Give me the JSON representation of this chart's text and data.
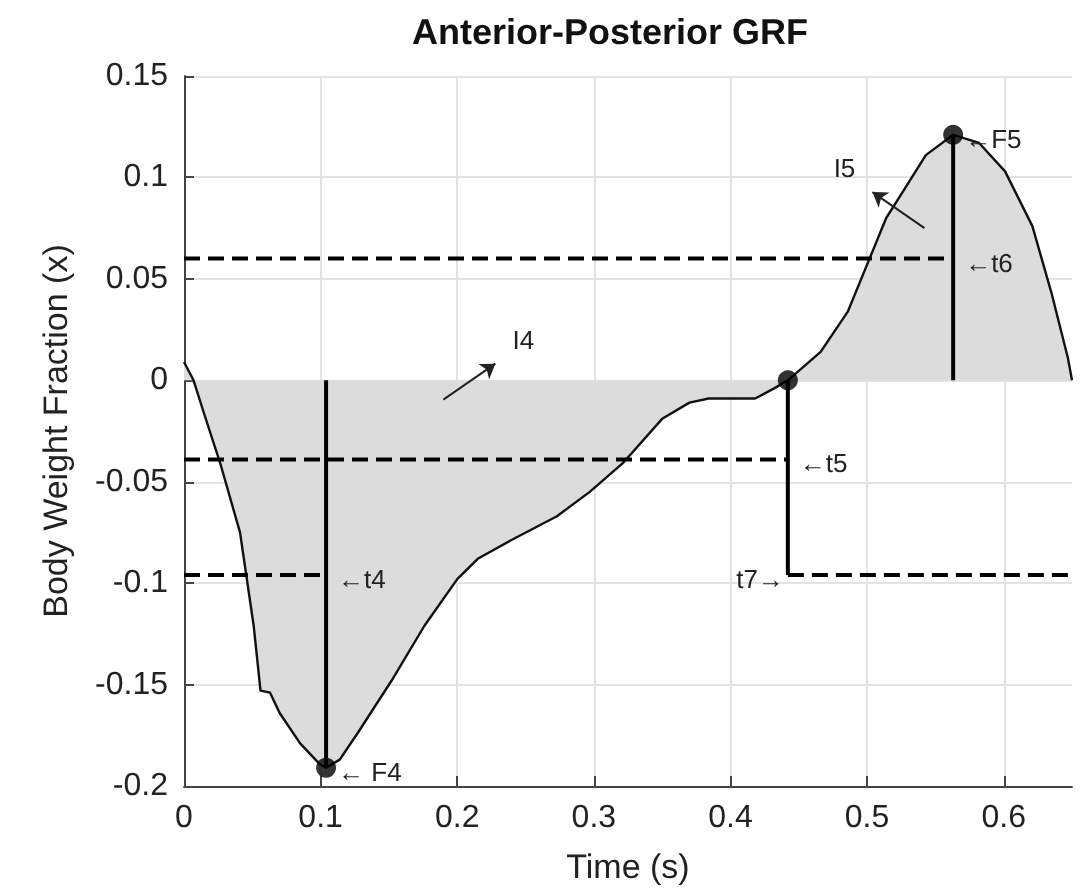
{
  "chart_data": {
    "type": "area",
    "title": "Anterior-Posterior GRF",
    "xlabel": "Time (s)",
    "ylabel": "Body Weight Fraction (x)",
    "xlim": [
      0,
      0.65
    ],
    "xticks": [
      0,
      0.1,
      0.2,
      0.3,
      0.4,
      0.5,
      0.6
    ],
    "ylim": [
      -0.2,
      0.15
    ],
    "yticks": [
      -0.2,
      -0.15,
      -0.1,
      -0.05,
      0,
      0.05,
      0.1,
      0.15
    ],
    "grid": true,
    "series": [
      {
        "type": "area",
        "color": "#dcdcdc",
        "x": [
          0,
          0.007,
          0.0145,
          0.027,
          0.041,
          0.051,
          0.056,
          0.063,
          0.07,
          0.085,
          0.099,
          0.104,
          0.114,
          0.128,
          0.152,
          0.176,
          0.2,
          0.215,
          0.239,
          0.273,
          0.297,
          0.321,
          0.35,
          0.37,
          0.384,
          0.418,
          0.432,
          0.442,
          0.466,
          0.486,
          0.5,
          0.514,
          0.529,
          0.543,
          0.563,
          0.582,
          0.601,
          0.621,
          0.635,
          0.647,
          0.65
        ],
        "values": [
          0.009,
          0,
          -0.016,
          -0.042,
          -0.075,
          -0.121,
          -0.153,
          -0.154,
          -0.164,
          -0.179,
          -0.189,
          -0.191,
          -0.187,
          -0.173,
          -0.148,
          -0.121,
          -0.098,
          -0.088,
          -0.079,
          -0.067,
          -0.055,
          -0.041,
          -0.019,
          -0.011,
          -0.009,
          -0.009,
          -0.004,
          0,
          0.014,
          0.034,
          0.057,
          0.08,
          0.096,
          0.111,
          0.121,
          0.117,
          0.103,
          0.076,
          0.043,
          0.011,
          0
        ]
      },
      {
        "type": "line",
        "color": "#000000",
        "line_style": "dashed",
        "marker": "none",
        "x": [
          0,
          0.563
        ],
        "values": [
          0.06,
          0.06
        ]
      },
      {
        "type": "line",
        "color": "#000000",
        "line_style": "dashed",
        "marker": "none",
        "x": [
          0,
          0.442
        ],
        "values": [
          -0.039,
          -0.039
        ]
      },
      {
        "type": "line",
        "color": "#000000",
        "line_style": "dashed",
        "marker": "none",
        "x": [
          0,
          0.104
        ],
        "values": [
          -0.096,
          -0.096
        ]
      },
      {
        "type": "line",
        "color": "#000000",
        "line_style": "dashed",
        "marker": "none",
        "x": [
          0.442,
          0.65
        ],
        "values": [
          -0.096,
          -0.096
        ]
      },
      {
        "type": "line",
        "color": "#000000",
        "line_style": "solid",
        "marker": "none",
        "x": [
          0.104,
          0.104
        ],
        "values": [
          0,
          -0.191
        ]
      },
      {
        "type": "line",
        "color": "#000000",
        "line_style": "solid",
        "marker": "none",
        "x": [
          0.442,
          0.442
        ],
        "values": [
          0,
          -0.096
        ]
      },
      {
        "type": "line",
        "color": "#000000",
        "line_style": "solid",
        "marker": "none",
        "x": [
          0.563,
          0.563
        ],
        "values": [
          0,
          0.121
        ]
      },
      {
        "type": "scatter",
        "color": "#000000",
        "marker": "circle",
        "x": [
          0.104,
          0.442,
          0.563
        ],
        "values": [
          -0.191,
          0,
          0.121
        ]
      }
    ],
    "annotations": [
      {
        "text": "← F4",
        "x": 0.104,
        "y": -0.191
      },
      {
        "text": "←F5",
        "x": 0.563,
        "y": 0.121
      },
      {
        "text": "←t6",
        "x": 0.563,
        "y": 0.06
      },
      {
        "text": "←t5",
        "x": 0.442,
        "y": -0.039
      },
      {
        "text": "←t4",
        "x": 0.104,
        "y": -0.096
      },
      {
        "text": "t7→",
        "x": 0.442,
        "y": -0.096
      },
      "I4",
      "I5"
    ]
  }
}
